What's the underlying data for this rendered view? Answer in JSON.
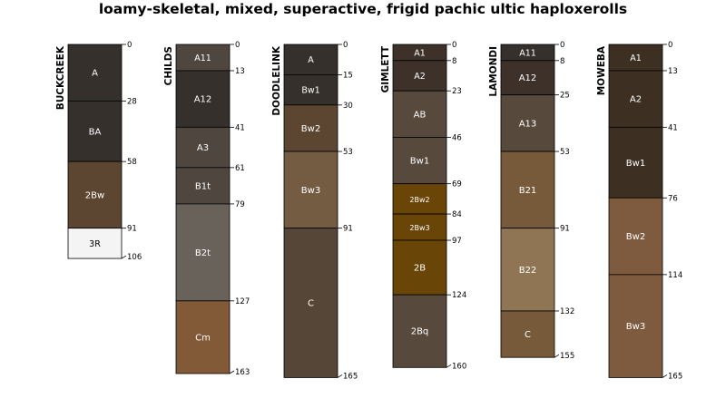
{
  "chart_data": {
    "type": "soil-profile-sketch",
    "title": "loamy-skeletal, mixed, superactive, frigid pachic ultic haploxerolls",
    "depth_unit": "cm",
    "profiles": [
      {
        "name": "BUCKCREEK",
        "horizons": [
          {
            "name": "A",
            "top": 0,
            "bottom": 28,
            "color": "#35302c"
          },
          {
            "name": "BA",
            "top": 28,
            "bottom": 58,
            "color": "#35302c"
          },
          {
            "name": "2Bw",
            "top": 58,
            "bottom": 91,
            "color": "#5c4631"
          },
          {
            "name": "3R",
            "top": 91,
            "bottom": 106,
            "color": "#f4f4f4"
          }
        ]
      },
      {
        "name": "CHILDS",
        "horizons": [
          {
            "name": "A11",
            "top": 0,
            "bottom": 13,
            "color": "#4f4640"
          },
          {
            "name": "A12",
            "top": 13,
            "bottom": 41,
            "color": "#35302c"
          },
          {
            "name": "A3",
            "top": 41,
            "bottom": 61,
            "color": "#4f4640"
          },
          {
            "name": "B1t",
            "top": 61,
            "bottom": 79,
            "color": "#4f4640"
          },
          {
            "name": "B2t",
            "top": 79,
            "bottom": 127,
            "color": "#69625a"
          },
          {
            "name": "Cm",
            "top": 127,
            "bottom": 163,
            "color": "#835a37"
          }
        ]
      },
      {
        "name": "DOODLELINK",
        "horizons": [
          {
            "name": "A",
            "top": 0,
            "bottom": 15,
            "color": "#35302c"
          },
          {
            "name": "Bw1",
            "top": 15,
            "bottom": 30,
            "color": "#35302c"
          },
          {
            "name": "Bw2",
            "top": 30,
            "bottom": 53,
            "color": "#5c4631"
          },
          {
            "name": "Bw3",
            "top": 53,
            "bottom": 91,
            "color": "#745c43"
          },
          {
            "name": "C",
            "top": 91,
            "bottom": 165,
            "color": "#564638"
          }
        ]
      },
      {
        "name": "GIMLETT",
        "horizons": [
          {
            "name": "A1",
            "top": 0,
            "bottom": 8,
            "color": "#3d3129"
          },
          {
            "name": "A2",
            "top": 8,
            "bottom": 23,
            "color": "#3d3129"
          },
          {
            "name": "AB",
            "top": 23,
            "bottom": 46,
            "color": "#574a3d"
          },
          {
            "name": "Bw1",
            "top": 46,
            "bottom": 69,
            "color": "#574a3d"
          },
          {
            "name": "2Bw2",
            "top": 69,
            "bottom": 84,
            "color": "#6a4508"
          },
          {
            "name": "2Bw3",
            "top": 84,
            "bottom": 97,
            "color": "#6a4508"
          },
          {
            "name": "2B",
            "top": 97,
            "bottom": 124,
            "color": "#6a4508"
          },
          {
            "name": "2Bq",
            "top": 124,
            "bottom": 160,
            "color": "#574a3d"
          }
        ]
      },
      {
        "name": "LAMONDI",
        "horizons": [
          {
            "name": "A11",
            "top": 0,
            "bottom": 8,
            "color": "#35302c"
          },
          {
            "name": "A12",
            "top": 8,
            "bottom": 25,
            "color": "#3d3129"
          },
          {
            "name": "A13",
            "top": 25,
            "bottom": 53,
            "color": "#574a3d"
          },
          {
            "name": "B21",
            "top": 53,
            "bottom": 91,
            "color": "#765a3a"
          },
          {
            "name": "B22",
            "top": 91,
            "bottom": 132,
            "color": "#8f7554"
          },
          {
            "name": "C",
            "top": 132,
            "bottom": 155,
            "color": "#765a3a"
          }
        ]
      },
      {
        "name": "MOWEBA",
        "horizons": [
          {
            "name": "A1",
            "top": 0,
            "bottom": 13,
            "color": "#3d3022"
          },
          {
            "name": "A2",
            "top": 13,
            "bottom": 41,
            "color": "#3d3022"
          },
          {
            "name": "Bw1",
            "top": 41,
            "bottom": 76,
            "color": "#3d3022"
          },
          {
            "name": "Bw2",
            "top": 76,
            "bottom": 114,
            "color": "#7e5a3e"
          },
          {
            "name": "Bw3",
            "top": 114,
            "bottom": 165,
            "color": "#7e5a3e"
          }
        ]
      }
    ]
  }
}
